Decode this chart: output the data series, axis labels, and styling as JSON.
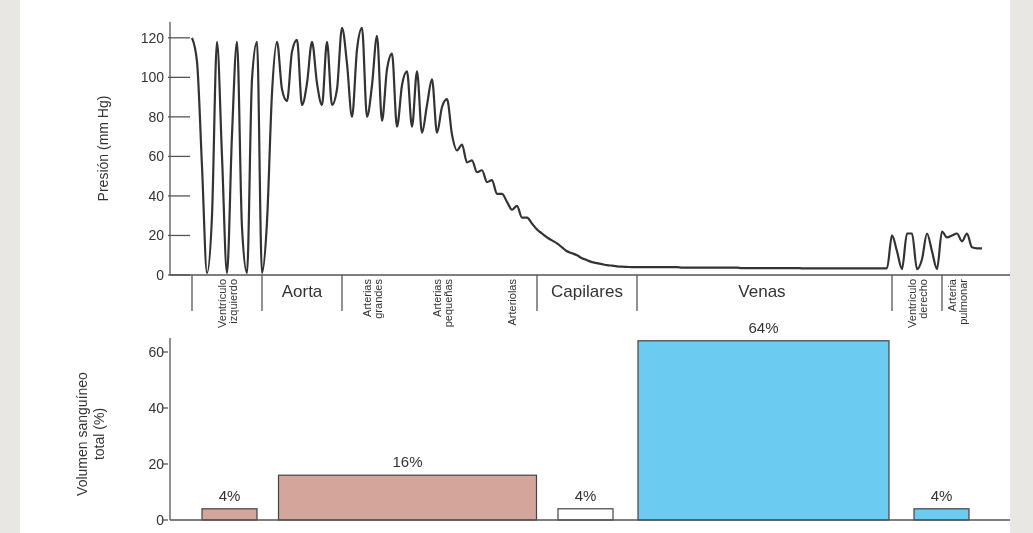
{
  "chart_data": [
    {
      "type": "line",
      "ylabel": "Presión (mm Hg)",
      "ylim": [
        0,
        128
      ],
      "yticks": [
        0,
        20,
        40,
        60,
        80,
        100,
        120
      ],
      "grid": false,
      "marker": "none",
      "line_style": "solid",
      "categories": [
        null,
        null,
        null,
        null,
        null,
        null,
        null,
        "Ventrículo izquierdo",
        null,
        null,
        null,
        null,
        null,
        null,
        null,
        null,
        null,
        null,
        null,
        null,
        null,
        null,
        "Aorta",
        null,
        null,
        null,
        null,
        null,
        null,
        null,
        null,
        null,
        null,
        null,
        null,
        null,
        "Arterias grandes",
        null,
        null,
        null,
        null,
        null,
        null,
        null,
        null,
        null,
        null,
        null,
        null,
        null,
        "Arterias pequeñas",
        null,
        null,
        null,
        null,
        null,
        null,
        null,
        null,
        null,
        null,
        null,
        null,
        null,
        "Arteriolas",
        null,
        null,
        null,
        null,
        null,
        null,
        null,
        null,
        null,
        null,
        null,
        null,
        null,
        null,
        "Capilares",
        null,
        null,
        null,
        null,
        null,
        null,
        null,
        null,
        null,
        null,
        null,
        null,
        null,
        null,
        null,
        null,
        null,
        null,
        null,
        null,
        null,
        null,
        null,
        null,
        null,
        null,
        null,
        null,
        null,
        null,
        null,
        null,
        null,
        null,
        "Venas",
        null,
        null,
        null,
        null,
        null,
        null,
        null,
        null,
        null,
        null,
        null,
        null,
        null,
        null,
        null,
        null,
        null,
        null,
        null,
        null,
        null,
        null,
        null,
        null,
        null,
        null,
        null,
        null,
        null,
        null,
        "Ventrículo derecho",
        null,
        null,
        null,
        null,
        null,
        null,
        null,
        "Arteria pulmonar",
        null,
        null,
        null,
        null,
        null
      ],
      "series": [
        {
          "color": "#333333",
          "values": [
            120,
            108,
            55,
            1,
            30,
            118,
            60,
            1,
            71,
            118,
            24,
            1,
            99,
            118,
            1,
            27,
            92,
            118,
            94,
            88,
            113,
            119,
            86,
            97,
            118,
            97,
            86,
            118,
            86,
            94,
            125,
            107,
            80,
            114,
            125,
            80,
            96,
            121,
            78,
            104,
            112,
            75,
            96,
            103,
            75,
            103,
            72,
            86,
            99,
            72,
            85,
            89,
            71,
            63,
            66,
            57,
            58,
            52,
            53,
            47,
            48,
            41,
            41,
            37,
            33,
            35,
            29,
            29,
            26,
            23,
            21,
            19,
            17.5,
            16,
            14,
            12,
            11,
            10,
            8.5,
            7.5,
            6.5,
            6,
            5.5,
            5,
            4.7,
            4.4,
            4.2,
            4.1,
            4,
            4,
            4,
            4,
            4,
            4,
            4,
            4,
            4,
            4,
            3.7,
            3.7,
            3.7,
            3.7,
            3.7,
            3.7,
            3.7,
            3.7,
            3.7,
            3.7,
            3.7,
            3.7,
            3.5,
            3.5,
            3.5,
            3.5,
            3.5,
            3.5,
            3.5,
            3.5,
            3.5,
            3.5,
            3.5,
            3.5,
            3.4,
            3.4,
            3.4,
            3.4,
            3.4,
            3.4,
            3.4,
            3.4,
            3.4,
            3.4,
            3.4,
            3.4,
            3.4,
            3.4,
            3.4,
            3.4,
            3.4,
            3.4,
            20,
            12,
            3,
            21,
            21,
            3,
            8,
            21,
            12,
            3,
            22,
            19,
            20,
            21,
            17,
            21,
            14,
            13.5,
            13.5
          ]
        }
      ]
    },
    {
      "type": "bar",
      "ylabel": "Volumen sanguíneo total (%)",
      "ylim": [
        0,
        65
      ],
      "yticks": [
        0,
        20,
        40,
        60
      ],
      "tick_labels": "y",
      "grid": false,
      "categories": [
        null,
        null,
        null,
        null,
        null
      ],
      "values": [
        4,
        16,
        4,
        64,
        4
      ],
      "colors": [
        "#d4a59a",
        "#d4a59a",
        "#ffffff",
        "#6ccbf0",
        "#6ccbf0"
      ],
      "value_labels": [
        "4%",
        "16%",
        "4%",
        "64%",
        "4%"
      ]
    }
  ]
}
